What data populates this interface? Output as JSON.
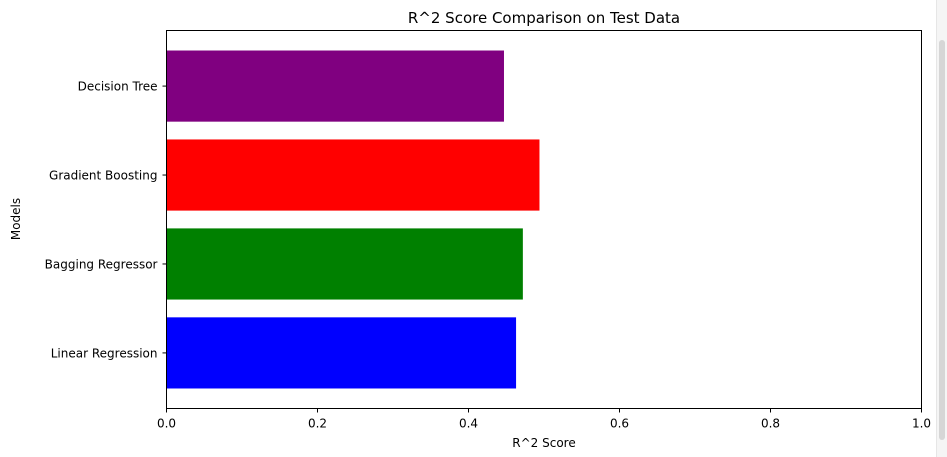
{
  "chart_data": {
    "type": "bar",
    "orientation": "horizontal",
    "title": "R^2 Score Comparison on Test Data",
    "xlabel": "R^2 Score",
    "ylabel": "Models",
    "categories": [
      "Linear Regression",
      "Bagging Regressor",
      "Gradient Boosting",
      "Decision Tree"
    ],
    "values": [
      0.463,
      0.472,
      0.494,
      0.447
    ],
    "colors": [
      "#0000ff",
      "#008000",
      "#ff0000",
      "#800080"
    ],
    "xlim": [
      0.0,
      1.0
    ],
    "xticks": [
      "0.0",
      "0.2",
      "0.4",
      "0.6",
      "0.8",
      "1.0"
    ],
    "grid": false,
    "legend": "none"
  }
}
